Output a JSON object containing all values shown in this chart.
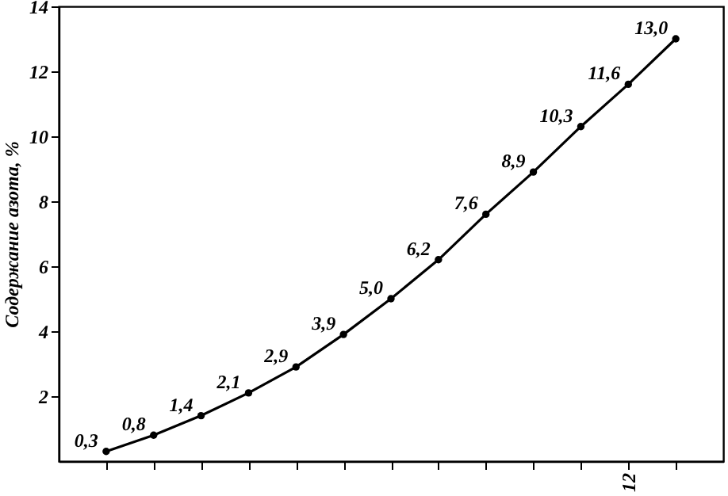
{
  "chart_data": {
    "type": "line",
    "ylabel": "Содержание азота, %",
    "categories": [
      null,
      null,
      null,
      null,
      null,
      null,
      null,
      null,
      null,
      null,
      null,
      "12",
      null
    ],
    "series": [
      {
        "color": "#000000",
        "values": [
          0.3,
          0.8,
          1.4,
          2.1,
          2.9,
          3.9,
          5.0,
          6.2,
          7.6,
          8.9,
          10.3,
          11.6,
          13.0
        ],
        "value_labels": [
          "0,3",
          "0,8",
          "1,4",
          "2,1",
          "2,9",
          "3,9",
          "5,0",
          "6,2",
          "7,6",
          "8,9",
          "10,3",
          "11,6",
          "13,0"
        ]
      }
    ],
    "ylim": [
      0,
      14
    ],
    "yticks": [
      2,
      4,
      6,
      8,
      10,
      12,
      14
    ],
    "grid": false,
    "marker": "circle",
    "line_style": "solid"
  }
}
